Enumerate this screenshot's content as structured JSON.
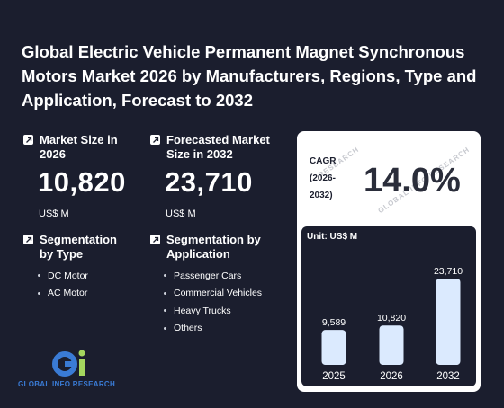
{
  "title": "Global Electric Vehicle Permanent Magnet Synchronous Motors Market 2026 by Manufacturers, Regions, Type and Application, Forecast to 2032",
  "market_size": {
    "label": "Market Size in 2026",
    "value": "10,820",
    "unit": "US$ M"
  },
  "forecast": {
    "label": "Forecasted Market Size in 2032",
    "value": "23,710",
    "unit": "US$ M"
  },
  "segment_type": {
    "label": "Segmentation by Type",
    "items": [
      "DC Motor",
      "AC Motor"
    ]
  },
  "segment_application": {
    "label": "Segmentation by Application",
    "items": [
      "Passenger Cars",
      "Commercial Vehicles",
      "Heavy Trucks",
      "Others"
    ]
  },
  "cagr": {
    "label_line1": "CAGR",
    "label_line2": "(2026-",
    "label_line3": "2032)",
    "value": "14.0%"
  },
  "watermark": {
    "text1": "GLOBAL INFO RESEARCH",
    "text2": "RESEARCH"
  },
  "logo": {
    "text": "GLOBAL INFO RESEARCH"
  },
  "colors": {
    "background": "#1b1e2e",
    "bar": "#dbeafe",
    "card": "#ffffff",
    "logo_blue": "#3a7bd5",
    "logo_green": "#a4d65e"
  },
  "chart_data": {
    "type": "bar",
    "unit_label": "Unit: US$ M",
    "categories": [
      "2025",
      "2026",
      "2032"
    ],
    "values": [
      9589,
      10820,
      23710
    ],
    "value_labels": [
      "9,589",
      "10,820",
      "23,710"
    ],
    "ylim": [
      0,
      23710
    ],
    "grid": false
  }
}
